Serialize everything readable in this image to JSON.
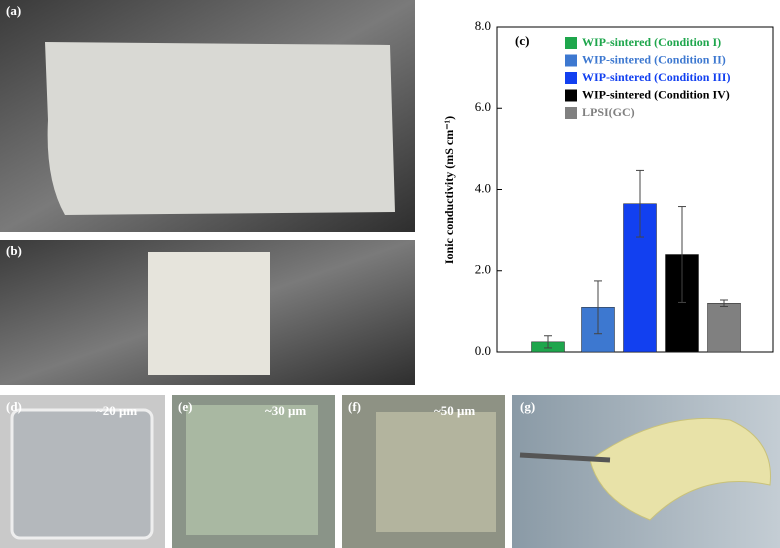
{
  "panels": {
    "a": "(a)",
    "b": "(b)",
    "d": {
      "label": "(d)",
      "thickness": "~20 μm"
    },
    "e": {
      "label": "(e)",
      "thickness": "~30 μm"
    },
    "f": {
      "label": "(f)",
      "thickness": "~50 μm"
    },
    "g": "(g)"
  },
  "chart_data": {
    "type": "bar",
    "panel_label": "(c)",
    "y_label": "Ionic conductivity (mS cm⁻¹)",
    "categories": [
      "WIP-sintered (Condition I)",
      "WIP-sintered (Condition II)",
      "WIP-sintered (Condition III)",
      "WIP-sintered (Condition IV)",
      "LPSI(GC)"
    ],
    "values": [
      0.25,
      1.1,
      3.65,
      2.4,
      1.2
    ],
    "errors": [
      0.15,
      0.65,
      0.82,
      1.18,
      0.08
    ],
    "colors": [
      "#1ea64c",
      "#3d78d0",
      "#1240f0",
      "#000000",
      "#808080"
    ],
    "ylim": [
      0,
      8
    ],
    "yticks": [
      {
        "value": 0,
        "label": "0.0"
      },
      {
        "value": 2,
        "label": "2.0"
      },
      {
        "value": 4,
        "label": "4.0"
      },
      {
        "value": 6,
        "label": "6.0"
      },
      {
        "value": 8,
        "label": "8.0"
      }
    ]
  }
}
